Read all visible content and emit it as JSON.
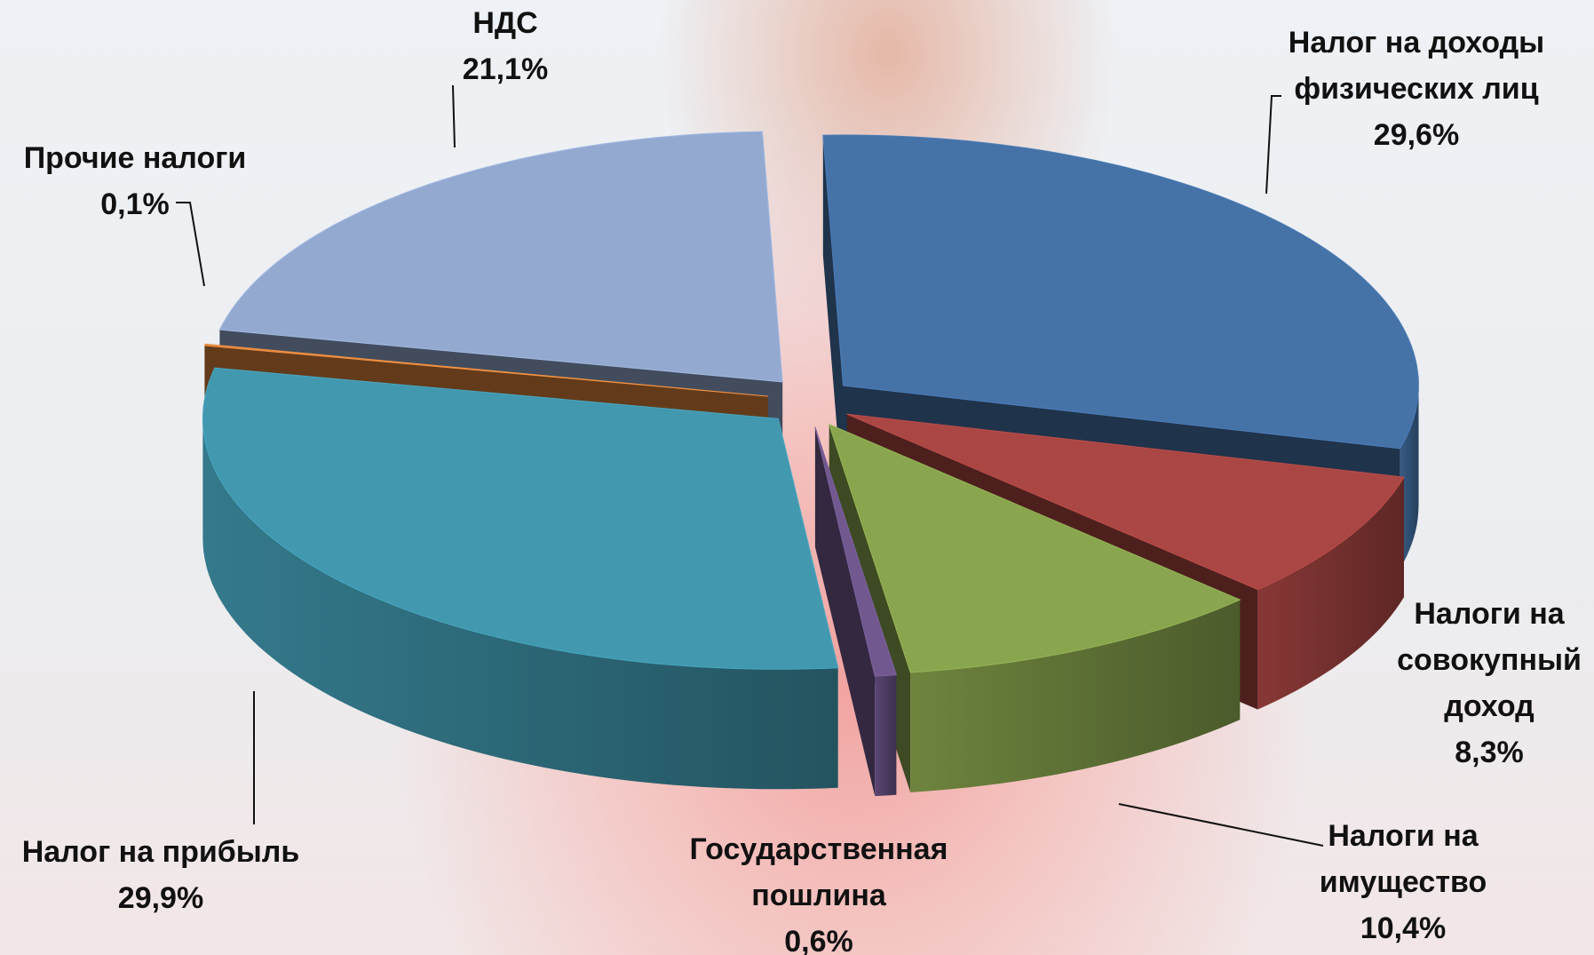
{
  "chart_data": {
    "type": "pie",
    "categories": [
      "Налог на доходы физических лиц",
      "Налоги на совокупный доход",
      "Налоги на имущество",
      "Государственная пошлина",
      "Налог на прибыль",
      "Прочие налоги",
      "НДС"
    ],
    "values": [
      29.6,
      8.3,
      10.4,
      0.6,
      29.9,
      0.1,
      21.1
    ],
    "value_labels": [
      "29,6%",
      "8,3%",
      "10,4%",
      "0,6%",
      "29,9%",
      "0,1%",
      "21,1%"
    ],
    "colors": [
      "#4572a7",
      "#aa4643",
      "#89a54e",
      "#71588f",
      "#4198af",
      "#db843d",
      "#93a9cf"
    ]
  }
}
